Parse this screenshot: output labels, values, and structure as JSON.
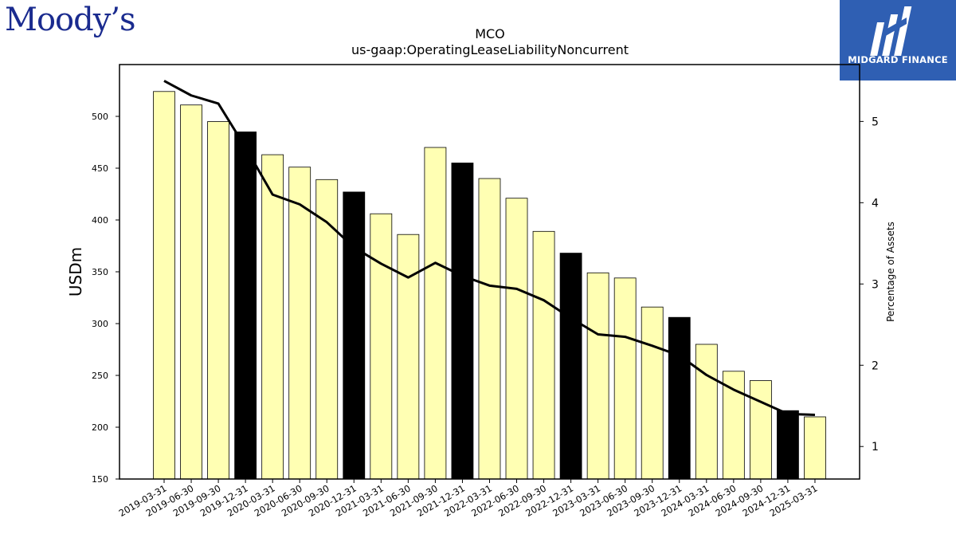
{
  "branding": {
    "left_logo_text": "Moody’s",
    "right_logo_text": "MIDGARD FINANCE",
    "right_logo_color": "#2f5fb3"
  },
  "chart_data": {
    "type": "bar",
    "title": "MCO",
    "subtitle": "us-gaap:OperatingLeaseLiabilityNoncurrent",
    "ylabel": "USDm",
    "y2label": "Percentage of Assets",
    "ylim": [
      150,
      550
    ],
    "y2lim": [
      0.6,
      5.7
    ],
    "yticks": [
      150,
      200,
      250,
      300,
      350,
      400,
      450,
      500
    ],
    "y2ticks": [
      1,
      2,
      3,
      4,
      5
    ],
    "categories": [
      "2019-03-31",
      "2019-06-30",
      "2019-09-30",
      "2019-12-31",
      "2020-03-31",
      "2020-06-30",
      "2020-09-30",
      "2020-12-31",
      "2021-03-31",
      "2021-06-30",
      "2021-09-30",
      "2021-12-31",
      "2022-03-31",
      "2022-06-30",
      "2022-09-30",
      "2022-12-31",
      "2023-03-31",
      "2023-06-30",
      "2023-09-30",
      "2023-12-31",
      "2024-03-31",
      "2024-06-30",
      "2024-09-30",
      "2024-12-31",
      "2025-03-31"
    ],
    "series": [
      {
        "kind": "bar",
        "values": [
          524,
          511,
          495,
          485,
          463,
          451,
          439,
          427,
          406,
          386,
          470,
          455,
          440,
          421,
          389,
          368,
          349,
          344,
          316,
          306,
          280,
          254,
          245,
          216,
          210
        ]
      },
      {
        "kind": "line",
        "axis": "right",
        "values": [
          5.5,
          5.32,
          5.22,
          4.68,
          4.1,
          3.98,
          3.76,
          3.45,
          3.25,
          3.08,
          3.26,
          3.1,
          2.98,
          2.94,
          2.8,
          2.58,
          2.38,
          2.35,
          2.24,
          2.12,
          1.88,
          1.7,
          1.55,
          1.4,
          1.39
        ]
      }
    ],
    "bar_color": "#ffffb3",
    "highlight_color": "#000000",
    "line_color": "#000000",
    "grid": false
  }
}
